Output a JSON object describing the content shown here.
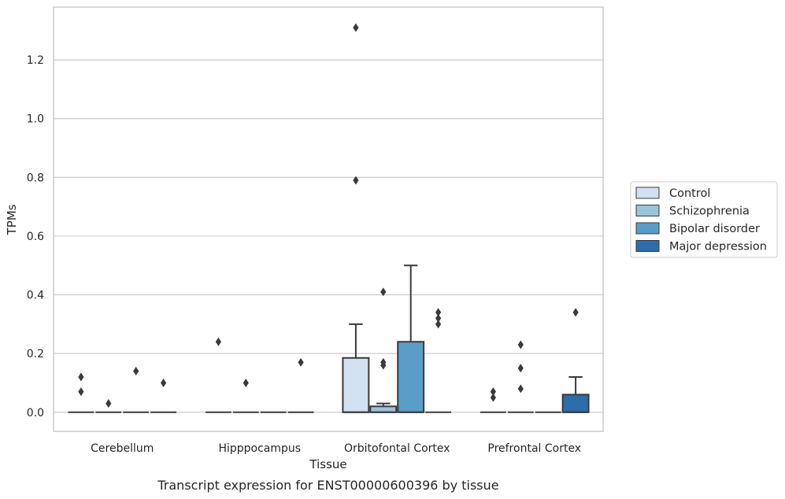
{
  "chart_data": {
    "type": "box",
    "title": "",
    "caption": "Transcript expression for ENST00000600396 by tissue",
    "xlabel": "Tissue",
    "ylabel": "TPMs",
    "ylim": [
      -0.065,
      1.38
    ],
    "yticks": [
      "0.0",
      "0.2",
      "0.4",
      "0.6",
      "0.8",
      "1.0",
      "1.2"
    ],
    "grid": true,
    "legend_position": "right",
    "categories": [
      "Cerebellum",
      "Hipppocampus",
      "Orbitofontal Cortex",
      "Prefrontal Cortex"
    ],
    "series": [
      {
        "name": "Control",
        "color": "#d2e1f1",
        "boxes": [
          {
            "q1": 0,
            "median": 0,
            "q3": 0,
            "whisker_low": 0,
            "whisker_high": 0,
            "outliers": [
              0.07,
              0.12
            ]
          },
          {
            "q1": 0,
            "median": 0,
            "q3": 0,
            "whisker_low": 0,
            "whisker_high": 0,
            "outliers": [
              0.24
            ]
          },
          {
            "q1": 0,
            "median": 0,
            "q3": 0.185,
            "whisker_low": 0,
            "whisker_high": 0.3,
            "outliers": [
              0.79,
              1.31
            ]
          },
          {
            "q1": 0,
            "median": 0,
            "q3": 0,
            "whisker_low": 0,
            "whisker_high": 0,
            "outliers": [
              0.05,
              0.07
            ]
          }
        ]
      },
      {
        "name": "Schizophrenia",
        "color": "#9ac3dd",
        "boxes": [
          {
            "q1": 0,
            "median": 0,
            "q3": 0,
            "whisker_low": 0,
            "whisker_high": 0,
            "outliers": [
              0.03
            ]
          },
          {
            "q1": 0,
            "median": 0,
            "q3": 0,
            "whisker_low": 0,
            "whisker_high": 0,
            "outliers": [
              0.1
            ]
          },
          {
            "q1": 0,
            "median": 0,
            "q3": 0.02,
            "whisker_low": 0,
            "whisker_high": 0.03,
            "outliers": [
              0.16,
              0.17,
              0.41
            ]
          },
          {
            "q1": 0,
            "median": 0,
            "q3": 0,
            "whisker_low": 0,
            "whisker_high": 0,
            "outliers": [
              0.08,
              0.15,
              0.23
            ]
          }
        ]
      },
      {
        "name": "Bipolar disorder",
        "color": "#5a9dc9",
        "boxes": [
          {
            "q1": 0,
            "median": 0,
            "q3": 0,
            "whisker_low": 0,
            "whisker_high": 0,
            "outliers": [
              0.14
            ]
          },
          {
            "q1": 0,
            "median": 0,
            "q3": 0,
            "whisker_low": 0,
            "whisker_high": 0,
            "outliers": []
          },
          {
            "q1": 0,
            "median": 0,
            "q3": 0.24,
            "whisker_low": 0,
            "whisker_high": 0.5,
            "outliers": []
          },
          {
            "q1": 0,
            "median": 0,
            "q3": 0,
            "whisker_low": 0,
            "whisker_high": 0,
            "outliers": []
          }
        ]
      },
      {
        "name": "Major depression",
        "color": "#2c6daa",
        "boxes": [
          {
            "q1": 0,
            "median": 0,
            "q3": 0,
            "whisker_low": 0,
            "whisker_high": 0,
            "outliers": [
              0.1
            ]
          },
          {
            "q1": 0,
            "median": 0,
            "q3": 0,
            "whisker_low": 0,
            "whisker_high": 0,
            "outliers": [
              0.17
            ]
          },
          {
            "q1": 0,
            "median": 0,
            "q3": 0,
            "whisker_low": 0,
            "whisker_high": 0,
            "outliers": [
              0.3,
              0.32,
              0.34
            ]
          },
          {
            "q1": 0,
            "median": 0,
            "q3": 0.06,
            "whisker_low": 0,
            "whisker_high": 0.12,
            "outliers": [
              0.34
            ]
          }
        ]
      }
    ]
  }
}
